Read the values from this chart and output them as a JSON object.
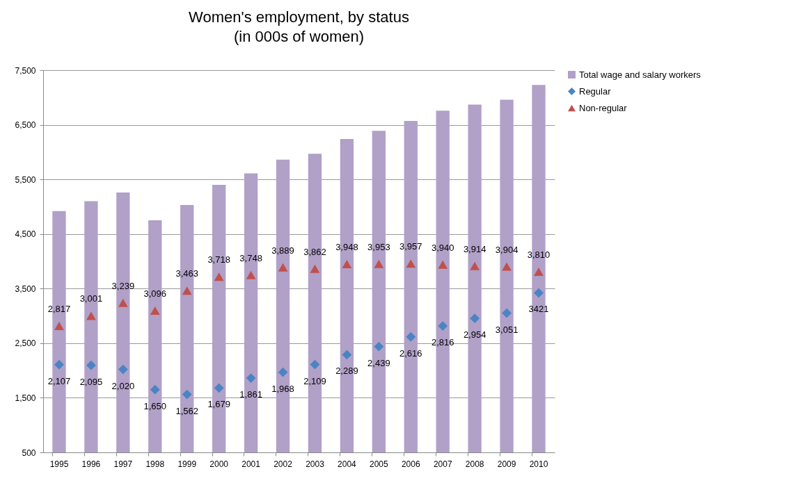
{
  "chart_data": {
    "type": "bar",
    "title": "Women's employment, by status",
    "subtitle": "(in 000s of women)",
    "categories": [
      "1995",
      "1996",
      "1997",
      "1998",
      "1999",
      "2000",
      "2001",
      "2002",
      "2003",
      "2004",
      "2005",
      "2006",
      "2007",
      "2008",
      "2009",
      "2010"
    ],
    "series": [
      {
        "name": "Total wage and salary workers",
        "color": "#b1a0c7",
        "values": [
          4920,
          5100,
          5260,
          4750,
          5030,
          5400,
          5610,
          5860,
          5970,
          6240,
          6390,
          6570,
          6760,
          6870,
          6960,
          7230
        ]
      },
      {
        "name": "Regular",
        "type": "scatter",
        "marker": "diamond",
        "color": "#4a84c4",
        "values": [
          2107,
          2095,
          2020,
          1650,
          1562,
          1679,
          1861,
          1968,
          2109,
          2289,
          2439,
          2616,
          2816,
          2954,
          3051,
          3421
        ],
        "value_labels": [
          "2,107",
          "2,095",
          "2,020",
          "1,650",
          "1,562",
          "1,679",
          "1,861",
          "1,968",
          "2,109",
          "2,289",
          "2,439",
          "2,616",
          "2,816",
          "2,954",
          "3,051",
          "3421"
        ]
      },
      {
        "name": "Non-regular",
        "type": "scatter",
        "marker": "triangle",
        "color": "#c0504d",
        "values": [
          2817,
          3001,
          3239,
          3096,
          3463,
          3718,
          3748,
          3889,
          3862,
          3948,
          3953,
          3957,
          3940,
          3914,
          3904,
          3810
        ],
        "value_labels": [
          "2,817",
          "3,001",
          "3,239",
          "3,096",
          "3,463",
          "3,718",
          "3,748",
          "3,889",
          "3,862",
          "3,948",
          "3,953",
          "3,957",
          "3,940",
          "3,914",
          "3,904",
          "3,810"
        ]
      }
    ],
    "ylim": [
      500,
      7500
    ],
    "yticks": [
      500,
      {
        "value": 1500,
        "label": "1,500"
      },
      {
        "value": 2500,
        "label": "2,500"
      },
      {
        "value": 3500,
        "label": "3,500"
      },
      {
        "value": 4500,
        "label": "4,500"
      },
      {
        "value": 5500,
        "label": "5,500"
      },
      {
        "value": 6500,
        "label": "6,500"
      },
      {
        "value": 7500,
        "label": "7,500"
      }
    ],
    "grid": "y",
    "legend": "right"
  }
}
